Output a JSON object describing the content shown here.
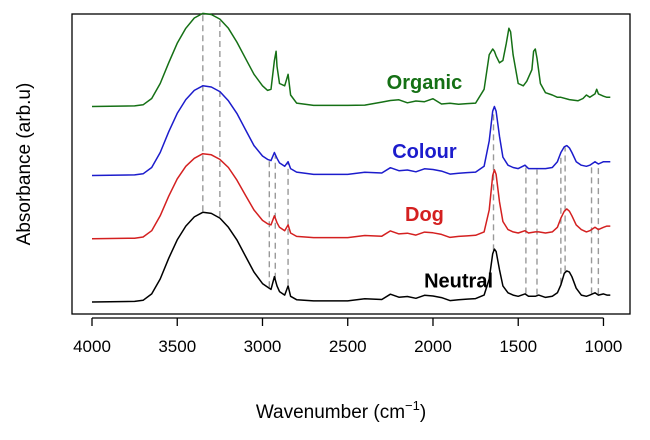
{
  "chart_data": {
    "type": "line",
    "title": "",
    "xlabel": "Wavenumber (cm",
    "xlabel_sup": "−1",
    "xlabel_suffix": ")",
    "ylabel": "Absorbance (arb.u)",
    "xlim": [
      4000,
      950
    ],
    "x_reversed": true,
    "x_ticks": [
      4000,
      3500,
      3000,
      2500,
      2000,
      1500,
      1000
    ],
    "y_ticks_shown": false,
    "grid": false,
    "legend": "inline-labels",
    "series": [
      {
        "name": "Neutral",
        "color": "#000000",
        "offset": 0,
        "label_at": 1850,
        "points": [
          [
            4000,
            0
          ],
          [
            3750,
            0.5
          ],
          [
            3700,
            1.5
          ],
          [
            3650,
            7
          ],
          [
            3600,
            20
          ],
          [
            3550,
            38
          ],
          [
            3500,
            54
          ],
          [
            3450,
            66
          ],
          [
            3400,
            74
          ],
          [
            3350,
            78
          ],
          [
            3300,
            77
          ],
          [
            3250,
            73
          ],
          [
            3200,
            65
          ],
          [
            3150,
            54
          ],
          [
            3100,
            40
          ],
          [
            3050,
            26
          ],
          [
            3000,
            16
          ],
          [
            2970,
            13
          ],
          [
            2950,
            11
          ],
          [
            2930,
            22
          ],
          [
            2915,
            14
          ],
          [
            2900,
            9
          ],
          [
            2870,
            6
          ],
          [
            2850,
            14
          ],
          [
            2835,
            5
          ],
          [
            2800,
            2
          ],
          [
            2700,
            1
          ],
          [
            2600,
            1
          ],
          [
            2500,
            1
          ],
          [
            2400,
            2
          ],
          [
            2300,
            3
          ],
          [
            2250,
            6
          ],
          [
            2200,
            5
          ],
          [
            2150,
            4
          ],
          [
            2100,
            4
          ],
          [
            2050,
            5
          ],
          [
            2000,
            6
          ],
          [
            1950,
            3
          ],
          [
            1900,
            2
          ],
          [
            1850,
            2
          ],
          [
            1800,
            2.5
          ],
          [
            1750,
            3
          ],
          [
            1700,
            6
          ],
          [
            1670,
            20
          ],
          [
            1650,
            42
          ],
          [
            1640,
            46
          ],
          [
            1630,
            44
          ],
          [
            1610,
            28
          ],
          [
            1590,
            14
          ],
          [
            1560,
            8
          ],
          [
            1530,
            6
          ],
          [
            1500,
            5
          ],
          [
            1460,
            7
          ],
          [
            1440,
            5
          ],
          [
            1400,
            5
          ],
          [
            1380,
            6
          ],
          [
            1340,
            4
          ],
          [
            1300,
            5
          ],
          [
            1270,
            8
          ],
          [
            1250,
            15
          ],
          [
            1230,
            25
          ],
          [
            1215,
            27
          ],
          [
            1200,
            26
          ],
          [
            1185,
            22
          ],
          [
            1160,
            12
          ],
          [
            1130,
            6
          ],
          [
            1100,
            5
          ],
          [
            1080,
            6
          ],
          [
            1050,
            8
          ],
          [
            1030,
            6
          ],
          [
            1000,
            7
          ],
          [
            980,
            6
          ],
          [
            960,
            6
          ]
        ]
      },
      {
        "name": "Dog",
        "color": "#d42020",
        "offset": 55,
        "label_at": 2050,
        "points": [
          [
            4000,
            0
          ],
          [
            3750,
            0.5
          ],
          [
            3700,
            1.5
          ],
          [
            3650,
            7
          ],
          [
            3600,
            20
          ],
          [
            3550,
            37
          ],
          [
            3500,
            52
          ],
          [
            3450,
            63
          ],
          [
            3400,
            70
          ],
          [
            3350,
            74
          ],
          [
            3300,
            73
          ],
          [
            3250,
            69
          ],
          [
            3200,
            62
          ],
          [
            3150,
            51
          ],
          [
            3100,
            38
          ],
          [
            3050,
            25
          ],
          [
            3000,
            16
          ],
          [
            2970,
            13
          ],
          [
            2950,
            12
          ],
          [
            2930,
            20
          ],
          [
            2915,
            14
          ],
          [
            2900,
            10
          ],
          [
            2870,
            7
          ],
          [
            2850,
            12
          ],
          [
            2835,
            5
          ],
          [
            2800,
            2
          ],
          [
            2700,
            1
          ],
          [
            2600,
            1
          ],
          [
            2500,
            1
          ],
          [
            2400,
            2
          ],
          [
            2300,
            3
          ],
          [
            2250,
            6
          ],
          [
            2200,
            5
          ],
          [
            2150,
            4
          ],
          [
            2100,
            4
          ],
          [
            2050,
            5
          ],
          [
            2000,
            6
          ],
          [
            1950,
            3
          ],
          [
            1900,
            2
          ],
          [
            1850,
            2
          ],
          [
            1800,
            2.5
          ],
          [
            1750,
            3
          ],
          [
            1700,
            6
          ],
          [
            1670,
            25
          ],
          [
            1650,
            55
          ],
          [
            1640,
            60
          ],
          [
            1630,
            56
          ],
          [
            1610,
            32
          ],
          [
            1590,
            15
          ],
          [
            1560,
            8
          ],
          [
            1530,
            6
          ],
          [
            1500,
            5
          ],
          [
            1460,
            7
          ],
          [
            1440,
            5
          ],
          [
            1400,
            6
          ],
          [
            1380,
            6
          ],
          [
            1340,
            5
          ],
          [
            1300,
            6
          ],
          [
            1270,
            10
          ],
          [
            1250,
            18
          ],
          [
            1230,
            24
          ],
          [
            1215,
            26
          ],
          [
            1200,
            24
          ],
          [
            1185,
            20
          ],
          [
            1160,
            12
          ],
          [
            1130,
            8
          ],
          [
            1100,
            6
          ],
          [
            1080,
            7
          ],
          [
            1050,
            10
          ],
          [
            1030,
            8
          ],
          [
            1000,
            10
          ],
          [
            980,
            11
          ],
          [
            960,
            11
          ]
        ]
      },
      {
        "name": "Colour",
        "color": "#1c1ccc",
        "offset": 110,
        "label_at": 2050,
        "points": [
          [
            4000,
            0
          ],
          [
            3750,
            0.5
          ],
          [
            3700,
            1.5
          ],
          [
            3650,
            7
          ],
          [
            3600,
            20
          ],
          [
            3550,
            38
          ],
          [
            3500,
            54
          ],
          [
            3450,
            66
          ],
          [
            3400,
            74
          ],
          [
            3350,
            78
          ],
          [
            3300,
            77
          ],
          [
            3250,
            73
          ],
          [
            3200,
            65
          ],
          [
            3150,
            54
          ],
          [
            3100,
            40
          ],
          [
            3050,
            26
          ],
          [
            3000,
            17
          ],
          [
            2970,
            14
          ],
          [
            2950,
            13
          ],
          [
            2930,
            20
          ],
          [
            2915,
            15
          ],
          [
            2900,
            11
          ],
          [
            2870,
            8
          ],
          [
            2850,
            12
          ],
          [
            2835,
            6
          ],
          [
            2800,
            3
          ],
          [
            2700,
            1
          ],
          [
            2600,
            1
          ],
          [
            2500,
            1
          ],
          [
            2400,
            2
          ],
          [
            2300,
            3
          ],
          [
            2250,
            6
          ],
          [
            2200,
            5
          ],
          [
            2150,
            4
          ],
          [
            2100,
            4
          ],
          [
            2050,
            5
          ],
          [
            2000,
            6
          ],
          [
            1950,
            3
          ],
          [
            1900,
            2
          ],
          [
            1850,
            2
          ],
          [
            1800,
            2.5
          ],
          [
            1750,
            3
          ],
          [
            1700,
            8
          ],
          [
            1670,
            30
          ],
          [
            1650,
            56
          ],
          [
            1640,
            60
          ],
          [
            1630,
            56
          ],
          [
            1610,
            34
          ],
          [
            1590,
            16
          ],
          [
            1560,
            9
          ],
          [
            1530,
            7
          ],
          [
            1500,
            6
          ],
          [
            1460,
            9
          ],
          [
            1440,
            6
          ],
          [
            1400,
            6
          ],
          [
            1380,
            6
          ],
          [
            1340,
            6
          ],
          [
            1300,
            7
          ],
          [
            1270,
            12
          ],
          [
            1250,
            20
          ],
          [
            1230,
            25
          ],
          [
            1215,
            26
          ],
          [
            1200,
            24
          ],
          [
            1185,
            20
          ],
          [
            1160,
            12
          ],
          [
            1130,
            9
          ],
          [
            1100,
            8
          ],
          [
            1080,
            9
          ],
          [
            1050,
            12
          ],
          [
            1030,
            10
          ],
          [
            1000,
            12
          ],
          [
            980,
            12
          ],
          [
            960,
            12
          ]
        ]
      },
      {
        "name": "Organic",
        "color": "#157015",
        "offset": 170,
        "label_at": 2050,
        "points": [
          [
            4000,
            0
          ],
          [
            3750,
            0.5
          ],
          [
            3700,
            1.5
          ],
          [
            3650,
            7
          ],
          [
            3600,
            20
          ],
          [
            3550,
            38
          ],
          [
            3500,
            55
          ],
          [
            3450,
            68
          ],
          [
            3400,
            77
          ],
          [
            3350,
            81
          ],
          [
            3300,
            80
          ],
          [
            3250,
            76
          ],
          [
            3200,
            68
          ],
          [
            3150,
            56
          ],
          [
            3100,
            42
          ],
          [
            3050,
            28
          ],
          [
            3000,
            18
          ],
          [
            2970,
            14
          ],
          [
            2950,
            15
          ],
          [
            2930,
            40
          ],
          [
            2920,
            48
          ],
          [
            2915,
            35
          ],
          [
            2900,
            20
          ],
          [
            2870,
            18
          ],
          [
            2850,
            28
          ],
          [
            2835,
            10
          ],
          [
            2800,
            3
          ],
          [
            2700,
            1
          ],
          [
            2600,
            1
          ],
          [
            2500,
            1
          ],
          [
            2400,
            2
          ],
          [
            2300,
            3
          ],
          [
            2250,
            6
          ],
          [
            2200,
            5
          ],
          [
            2150,
            4
          ],
          [
            2100,
            4
          ],
          [
            2050,
            5
          ],
          [
            2000,
            6
          ],
          [
            1950,
            3
          ],
          [
            1900,
            2
          ],
          [
            1850,
            2
          ],
          [
            1800,
            2.5
          ],
          [
            1750,
            3
          ],
          [
            1700,
            15
          ],
          [
            1670,
            45
          ],
          [
            1650,
            50
          ],
          [
            1640,
            48
          ],
          [
            1630,
            44
          ],
          [
            1610,
            38
          ],
          [
            1590,
            40
          ],
          [
            1570,
            55
          ],
          [
            1555,
            68
          ],
          [
            1545,
            65
          ],
          [
            1530,
            45
          ],
          [
            1500,
            20
          ],
          [
            1470,
            18
          ],
          [
            1450,
            22
          ],
          [
            1420,
            32
          ],
          [
            1410,
            48
          ],
          [
            1400,
            50
          ],
          [
            1390,
            42
          ],
          [
            1370,
            20
          ],
          [
            1340,
            12
          ],
          [
            1300,
            10
          ],
          [
            1270,
            8
          ],
          [
            1250,
            8
          ],
          [
            1200,
            6
          ],
          [
            1150,
            5
          ],
          [
            1120,
            7
          ],
          [
            1100,
            10
          ],
          [
            1080,
            8
          ],
          [
            1050,
            11
          ],
          [
            1040,
            15
          ],
          [
            1030,
            11
          ],
          [
            1000,
            9
          ],
          [
            980,
            8
          ],
          [
            960,
            8
          ]
        ]
      }
    ],
    "annotation_lines": [
      {
        "x": 3350,
        "from": "Neutral",
        "to": "Organic"
      },
      {
        "x": 3250,
        "from": "Neutral",
        "to": "Organic"
      },
      {
        "x": 2960,
        "from": "Neutral",
        "to": "Colour"
      },
      {
        "x": 2925,
        "from": "Neutral",
        "to": "Colour"
      },
      {
        "x": 2850,
        "from": "Neutral",
        "to": "Colour"
      },
      {
        "x": 1645,
        "from": "Neutral",
        "to": "Colour"
      },
      {
        "x": 1455,
        "from": "Neutral",
        "to": "Colour"
      },
      {
        "x": 1390,
        "from": "Neutral",
        "to": "Colour"
      },
      {
        "x": 1250,
        "from": "Neutral",
        "to": "Colour"
      },
      {
        "x": 1225,
        "from": "Neutral",
        "to": "Colour"
      },
      {
        "x": 1070,
        "from": "Neutral",
        "to": "Colour"
      },
      {
        "x": 1030,
        "from": "Neutral",
        "to": "Colour"
      }
    ]
  }
}
